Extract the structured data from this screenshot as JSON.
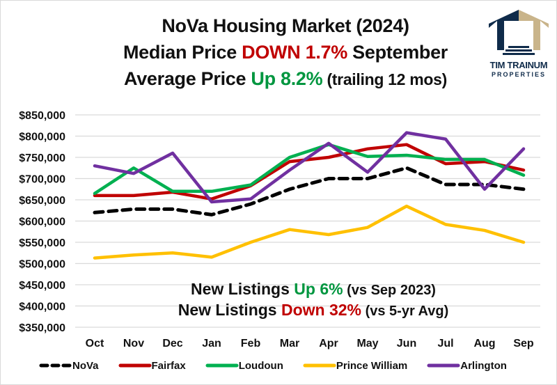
{
  "title": {
    "line1": "NoVa Housing Market (2024)",
    "line2_prefix": "Median Price ",
    "line2_highlight": "DOWN 1.7%",
    "line2_suffix": " September",
    "line3_prefix": "Average Price ",
    "line3_highlight": "Up 8.2%",
    "line3_suffix": " (trailing 12 mos)"
  },
  "logo": {
    "name": "TIM TRAINUM",
    "subtitle": "PROPERTIES",
    "colors": {
      "navy": "#0f2b4a",
      "tan": "#c9b48a"
    }
  },
  "annotations": {
    "line1_prefix": "New Listings ",
    "line1_highlight": "Up 6%",
    "line1_suffix": " (vs Sep 2023)",
    "line2_prefix": "New Listings ",
    "line2_highlight": "Down 32%",
    "line2_suffix": " (vs 5-yr Avg)"
  },
  "colors": {
    "up": "#00963f",
    "down": "#c00000",
    "grid": "#d9d9d9"
  },
  "chart_data": {
    "type": "line",
    "title": "NoVa Housing Market (2024)",
    "xlabel": "",
    "ylabel": "",
    "categories": [
      "Oct",
      "Nov",
      "Dec",
      "Jan",
      "Feb",
      "Mar",
      "Apr",
      "May",
      "Jun",
      "Jul",
      "Aug",
      "Sep"
    ],
    "ylim": [
      350000,
      850000
    ],
    "yticks": [
      850000,
      800000,
      750000,
      700000,
      650000,
      600000,
      550000,
      500000,
      450000,
      400000,
      350000
    ],
    "ytick_labels": [
      "$850,000",
      "$800,000",
      "$750,000",
      "$700,000",
      "$650,000",
      "$600,000",
      "$550,000",
      "$500,000",
      "$450,000",
      "$400,000",
      "$350,000"
    ],
    "grid": true,
    "legend_position": "bottom",
    "series": [
      {
        "name": "NoVa",
        "color": "#000000",
        "dashed": true,
        "values": [
          620000,
          628000,
          628000,
          615000,
          640000,
          675000,
          700000,
          700000,
          725000,
          686000,
          686000,
          675000
        ]
      },
      {
        "name": "Fairfax",
        "color": "#c00000",
        "dashed": false,
        "values": [
          660000,
          660000,
          668000,
          652000,
          683000,
          740000,
          750000,
          770000,
          780000,
          735000,
          740000,
          720000
        ]
      },
      {
        "name": "Loudoun",
        "color": "#00b050",
        "dashed": false,
        "values": [
          665000,
          725000,
          670000,
          670000,
          685000,
          750000,
          780000,
          752000,
          755000,
          745000,
          745000,
          708000
        ]
      },
      {
        "name": "Prince William",
        "color": "#ffc000",
        "dashed": false,
        "values": [
          513000,
          520000,
          525000,
          515000,
          550000,
          580000,
          568000,
          585000,
          635000,
          592000,
          578000,
          550000
        ]
      },
      {
        "name": "Arlington",
        "color": "#7030a0",
        "dashed": false,
        "values": [
          730000,
          712000,
          760000,
          645000,
          652000,
          720000,
          783000,
          715000,
          808000,
          793000,
          675000,
          770000
        ]
      }
    ]
  }
}
